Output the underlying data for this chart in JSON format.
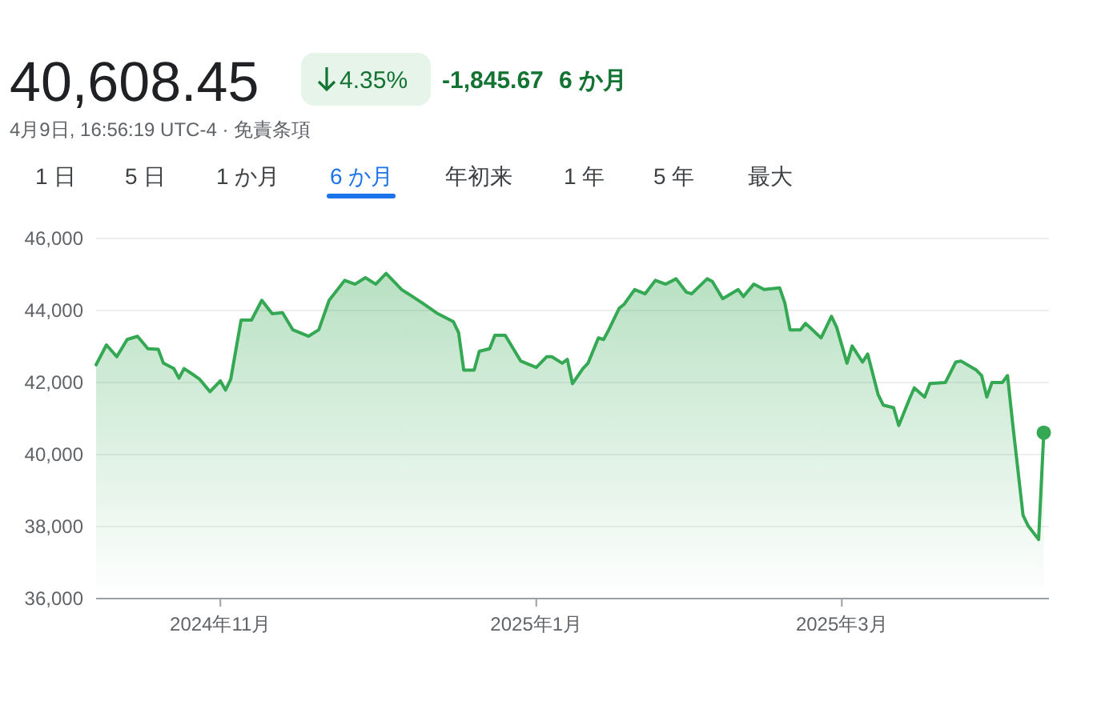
{
  "chart_data": {
    "type": "area",
    "title": "40,608.45",
    "annotations": [
      "4.35%",
      "-1,845.67",
      "6 か月",
      "4月9日, 16:56:19 UTC-4 · 免責条項",
      "1 日",
      "5 日",
      "1 か月",
      "6 か月",
      "年初来",
      "1 年",
      "5 年",
      "最大"
    ],
    "x": [
      "2024-10-08",
      "2024-10-10",
      "2024-10-12",
      "2024-10-14",
      "2024-10-16",
      "2024-10-18",
      "2024-10-20",
      "2024-10-21",
      "2024-10-23",
      "2024-10-24",
      "2024-10-25",
      "2024-10-27",
      "2024-10-28",
      "2024-10-30",
      "2024-11-01",
      "2024-11-02",
      "2024-11-03",
      "2024-11-05",
      "2024-11-07",
      "2024-11-09",
      "2024-11-11",
      "2024-11-13",
      "2024-11-15",
      "2024-11-18",
      "2024-11-20",
      "2024-11-22",
      "2024-11-25",
      "2024-11-27",
      "2024-11-29",
      "2024-12-01",
      "2024-12-03",
      "2024-12-06",
      "2024-12-10",
      "2024-12-13",
      "2024-12-16",
      "2024-12-17",
      "2024-12-18",
      "2024-12-20",
      "2024-12-21",
      "2024-12-23",
      "2024-12-24",
      "2024-12-26",
      "2024-12-29",
      "2024-12-30",
      "2025-01-01",
      "2025-01-03",
      "2025-01-04",
      "2025-01-06",
      "2025-01-07",
      "2025-01-08",
      "2025-01-10",
      "2025-01-11",
      "2025-01-13",
      "2025-01-14",
      "2025-01-15",
      "2025-01-17",
      "2025-01-18",
      "2025-01-20",
      "2025-01-22",
      "2025-01-24",
      "2025-01-26",
      "2025-01-28",
      "2025-01-30",
      "2025-01-31",
      "2025-02-03",
      "2025-02-04",
      "2025-02-06",
      "2025-02-09",
      "2025-02-10",
      "2025-02-12",
      "2025-02-14",
      "2025-02-17",
      "2025-02-18",
      "2025-02-19",
      "2025-02-21",
      "2025-02-22",
      "2025-02-25",
      "2025-02-27",
      "2025-02-28",
      "2025-03-02",
      "2025-03-03",
      "2025-03-05",
      "2025-03-06",
      "2025-03-08",
      "2025-03-09",
      "2025-03-11",
      "2025-03-12",
      "2025-03-14",
      "2025-03-15",
      "2025-03-17",
      "2025-03-18",
      "2025-03-21",
      "2025-03-23",
      "2025-03-24",
      "2025-03-27",
      "2025-03-28",
      "2025-03-29",
      "2025-03-30",
      "2025-04-01",
      "2025-04-02",
      "2025-04-03",
      "2025-04-05",
      "2025-04-06",
      "2025-04-08",
      "2025-04-09"
    ],
    "series": [
      {
        "color": "#34a853",
        "values": [
          42493,
          43045,
          42716,
          43194,
          43284,
          42940,
          42925,
          42537,
          42388,
          42119,
          42388,
          42194,
          42090,
          41746,
          42045,
          41791,
          42090,
          43731,
          43731,
          44284,
          43910,
          43940,
          43463,
          43284,
          43463,
          44284,
          44836,
          44731,
          44910,
          44731,
          45030,
          44582,
          44209,
          43910,
          43687,
          43388,
          42343,
          42343,
          42866,
          42940,
          43313,
          43313,
          42597,
          42537,
          42418,
          42716,
          42716,
          42537,
          42642,
          41970,
          42388,
          42537,
          43239,
          43194,
          43463,
          44060,
          44179,
          44582,
          44463,
          44836,
          44731,
          44881,
          44507,
          44463,
          44881,
          44806,
          44328,
          44582,
          44388,
          44731,
          44582,
          44627,
          44209,
          43463,
          43463,
          43642,
          43239,
          43836,
          43537,
          42537,
          43015,
          42567,
          42791,
          41672,
          41373,
          41299,
          40806,
          41522,
          41851,
          41597,
          41970,
          42000,
          42567,
          42597,
          42343,
          42194,
          41597,
          42000,
          42000,
          42194,
          40851,
          38313,
          38015,
          37642,
          40608
        ]
      }
    ],
    "xlim": [
      "2024-10-08",
      "2025-04-10"
    ],
    "xticks": [
      {
        "value": "2024-11-01",
        "label": "2024年11月"
      },
      {
        "value": "2025-01-01",
        "label": "2025年1月"
      },
      {
        "value": "2025-03-01",
        "label": "2025年3月"
      }
    ],
    "ylim": [
      36000,
      46000
    ],
    "yticks": [
      {
        "value": 36000,
        "label": "36,000"
      },
      {
        "value": 38000,
        "label": "38,000"
      },
      {
        "value": 40000,
        "label": "40,000"
      },
      {
        "value": 42000,
        "label": "42,000"
      },
      {
        "value": 44000,
        "label": "44,000"
      },
      {
        "value": 46000,
        "label": "46,000"
      }
    ],
    "grid": "y"
  }
}
